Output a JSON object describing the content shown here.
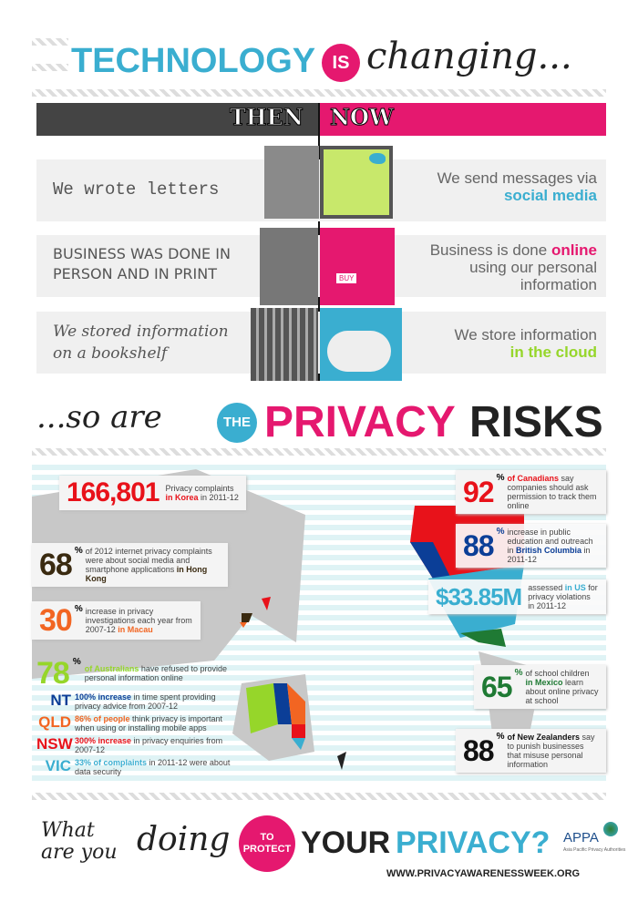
{
  "header": {
    "title_word": "TECHNOLOGY",
    "is_badge": "IS",
    "changing": "changing..."
  },
  "compare": {
    "then": "THEN",
    "now": "NOW",
    "rows": [
      {
        "then": "We wrote letters",
        "now_pre": "We send messages via ",
        "now_hl": "social media",
        "now_post": ""
      },
      {
        "then": "BUSINESS WAS DONE IN PERSON AND IN PRINT",
        "now_pre": "Business is done ",
        "now_hl": "online",
        "now_post": " using our personal information"
      },
      {
        "then": "We stored information on a bookshelf",
        "now_pre": "We store information ",
        "now_hl": "in the cloud",
        "now_post": ""
      }
    ],
    "buy_label": "BUY"
  },
  "risks": {
    "so_are": "...so are",
    "the_badge": "THE",
    "privacy": "PRIVACY",
    "risks": "RISKS"
  },
  "stats": {
    "korea": {
      "num": "166,801",
      "t1": "Privacy complaints ",
      "hl": "in Korea",
      "t2": " in 2011-12"
    },
    "hongkong": {
      "num": "68",
      "pct": "%",
      "t1": "of 2012 internet privacy complaints were about social media and smartphone applications ",
      "hl": "in Hong Kong"
    },
    "macau": {
      "num": "30",
      "pct": "%",
      "t1": "increase in privacy investigations each year from 2007-12 ",
      "hl": "in Macau"
    },
    "australia": {
      "num": "78",
      "pct": "%",
      "hl": "of Australians",
      "t1": " have refused to provide personal information online"
    },
    "nt": {
      "code": "NT",
      "hl": "100% increase",
      "t1": " in time spent providing privacy advice from 2007-12"
    },
    "qld": {
      "code": "QLD",
      "hl": "86% of people",
      "t1": " think privacy is important when using or installing mobile apps"
    },
    "nsw": {
      "code": "NSW",
      "hl": "300% increase",
      "t1": " in privacy enquiries from 2007-12"
    },
    "vic": {
      "code": "VIC",
      "hl": "33% of complaints",
      "t1": " in 2011-12 were about data security"
    },
    "canada": {
      "num": "92",
      "pct": "%",
      "hl": "of Canadians",
      "t1": " say companies should ask permission to track them online"
    },
    "bc": {
      "num": "88",
      "pct": "%",
      "t1": "increase in public education and outreach in ",
      "hl": "British Columbia",
      "t2": " in 2011-12"
    },
    "us": {
      "num": "$33.85M",
      "t1": "assessed ",
      "hl": "in US",
      "t2": " for privacy violations in 2011-12"
    },
    "mexico": {
      "num": "65",
      "pct": "%",
      "t1": "of school children ",
      "hl": "in Mexico",
      "t2": " learn about online privacy at school"
    },
    "nz": {
      "num": "88",
      "pct": "%",
      "hl": "of New Zealanders",
      "t1": " say to punish businesses that misuse personal information"
    }
  },
  "footer": {
    "what": "What",
    "are_you": "are you",
    "doing": "doing",
    "to_protect": "TO PROTECT",
    "your": "YOUR",
    "privacy": "PRIVACY?",
    "url": "WWW.PRIVACYAWARENESSWEEK.ORG",
    "logo": "APPA",
    "logo_sub": "Asia Pacific Privacy Authorities"
  },
  "colors": {
    "blue": "#3aaed0",
    "pink": "#e5186f",
    "dark": "#444444",
    "red": "#e8121a",
    "navy": "#0b3e97",
    "orange": "#f26522",
    "green": "#96d62a",
    "mgreen": "#1f7a34"
  }
}
